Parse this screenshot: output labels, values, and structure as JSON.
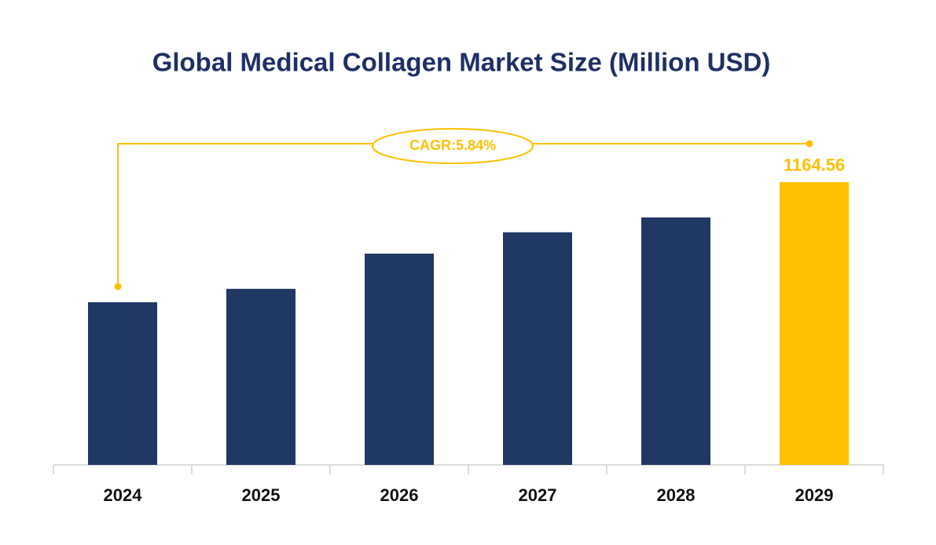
{
  "chart_data": {
    "type": "bar",
    "title": "Global Medical Collagen Market Size (Million USD)",
    "categories": [
      "2024",
      "2025",
      "2026",
      "2027",
      "2028",
      "2029"
    ],
    "values": [
      670,
      725,
      870,
      958,
      1019,
      1164.56
    ],
    "colors": [
      "#203864",
      "#203864",
      "#203864",
      "#203864",
      "#203864",
      "#ffc000"
    ],
    "ylim": [
      0,
      1300
    ],
    "annotation": "CAGR:5.84%",
    "annotation_color": "#ffc000"
  }
}
